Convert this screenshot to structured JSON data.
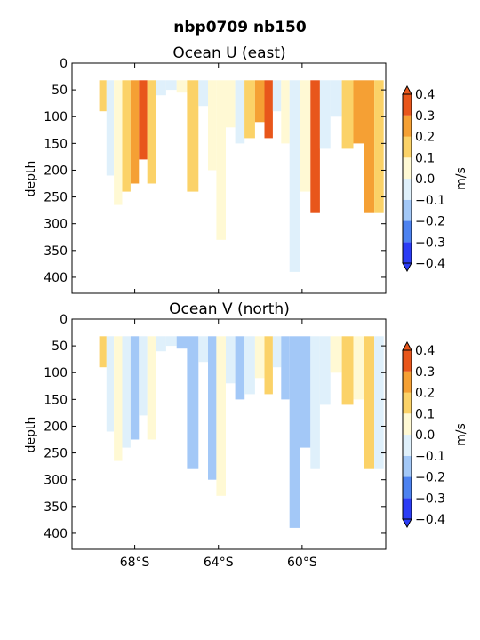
{
  "figure_title": "nbp0709 nb150",
  "chart_data": [
    {
      "type": "contour",
      "title": "Ocean U (east)",
      "ylabel": "depth",
      "xlabel": "",
      "x_tick_labels": [
        "68°S",
        "64°S",
        "60°S"
      ],
      "x_ticks": [
        -68,
        -64,
        -60
      ],
      "xlim": [
        -71,
        -56
      ],
      "ylim": [
        430,
        0
      ],
      "y_ticks": [
        0,
        50,
        100,
        150,
        200,
        250,
        300,
        350,
        400
      ],
      "colorbar": {
        "label": "m/s",
        "levels": [
          -0.4,
          -0.3,
          -0.2,
          -0.1,
          0.0,
          0.1,
          0.2,
          0.3,
          0.4
        ],
        "tick_labels": [
          "−0.4",
          "−0.3",
          "−0.2",
          "−0.1",
          "0.0",
          "0.1",
          "0.2",
          "0.3",
          "0.4"
        ],
        "colors": [
          "#2b3cf5",
          "#4d82f0",
          "#a3c8f7",
          "#dff0fb",
          "#fff9d4",
          "#fbd268",
          "#f5a034",
          "#e8561b"
        ]
      },
      "columns": [
        {
          "lat": -69.5,
          "bottom": 90,
          "v": 0.15
        },
        {
          "lat": -69.2,
          "bottom": 210,
          "v": -0.05
        },
        {
          "lat": -68.8,
          "bottom": 265,
          "v": 0.05
        },
        {
          "lat": -68.4,
          "bottom": 240,
          "v": 0.15
        },
        {
          "lat": -68.0,
          "bottom": 225,
          "v": 0.25
        },
        {
          "lat": -67.6,
          "bottom": 180,
          "v": 0.35
        },
        {
          "lat": -67.2,
          "bottom": 225,
          "v": 0.15
        },
        {
          "lat": -66.8,
          "bottom": 60,
          "v": -0.05
        },
        {
          "lat": -66.2,
          "bottom": 50,
          "v": -0.05
        },
        {
          "lat": -65.8,
          "bottom": 55,
          "v": 0.05
        },
        {
          "lat": -65.2,
          "bottom": 240,
          "v": 0.15
        },
        {
          "lat": -64.7,
          "bottom": 80,
          "v": -0.05
        },
        {
          "lat": -64.3,
          "bottom": 200,
          "v": 0.05
        },
        {
          "lat": -63.9,
          "bottom": 330,
          "v": 0.05
        },
        {
          "lat": -63.4,
          "bottom": 120,
          "v": 0.05
        },
        {
          "lat": -63.0,
          "bottom": 150,
          "v": -0.05
        },
        {
          "lat": -62.5,
          "bottom": 140,
          "v": 0.15
        },
        {
          "lat": -62.0,
          "bottom": 110,
          "v": 0.25
        },
        {
          "lat": -61.6,
          "bottom": 140,
          "v": 0.35
        },
        {
          "lat": -61.2,
          "bottom": 90,
          "v": -0.05
        },
        {
          "lat": -60.8,
          "bottom": 150,
          "v": 0.05
        },
        {
          "lat": -60.4,
          "bottom": 390,
          "v": -0.05
        },
        {
          "lat": -59.8,
          "bottom": 240,
          "v": 0.05
        },
        {
          "lat": -59.4,
          "bottom": 280,
          "v": 0.35
        },
        {
          "lat": -58.9,
          "bottom": 160,
          "v": -0.05
        },
        {
          "lat": -58.4,
          "bottom": 100,
          "v": -0.05
        },
        {
          "lat": -57.8,
          "bottom": 160,
          "v": 0.15
        },
        {
          "lat": -57.3,
          "bottom": 150,
          "v": 0.25
        },
        {
          "lat": -56.8,
          "bottom": 280,
          "v": 0.25
        },
        {
          "lat": -56.3,
          "bottom": 280,
          "v": 0.15
        }
      ]
    },
    {
      "type": "contour",
      "title": "Ocean V (north)",
      "ylabel": "depth",
      "xlabel": "",
      "x_tick_labels": [
        "68°S",
        "64°S",
        "60°S"
      ],
      "x_ticks": [
        -68,
        -64,
        -60
      ],
      "xlim": [
        -71,
        -56
      ],
      "ylim": [
        430,
        0
      ],
      "y_ticks": [
        0,
        50,
        100,
        150,
        200,
        250,
        300,
        350,
        400
      ],
      "colorbar": {
        "label": "m/s",
        "levels": [
          -0.4,
          -0.3,
          -0.2,
          -0.1,
          0.0,
          0.1,
          0.2,
          0.3,
          0.4
        ],
        "tick_labels": [
          "−0.4",
          "−0.3",
          "−0.2",
          "−0.1",
          "0.0",
          "0.1",
          "0.2",
          "0.3",
          "0.4"
        ],
        "colors": [
          "#2b3cf5",
          "#4d82f0",
          "#a3c8f7",
          "#dff0fb",
          "#fff9d4",
          "#fbd268",
          "#f5a034",
          "#e8561b"
        ]
      },
      "columns": [
        {
          "lat": -69.5,
          "bottom": 90,
          "v": 0.15
        },
        {
          "lat": -69.2,
          "bottom": 210,
          "v": -0.05
        },
        {
          "lat": -68.8,
          "bottom": 265,
          "v": 0.05
        },
        {
          "lat": -68.4,
          "bottom": 240,
          "v": -0.05
        },
        {
          "lat": -68.0,
          "bottom": 225,
          "v": -0.15
        },
        {
          "lat": -67.6,
          "bottom": 180,
          "v": -0.05
        },
        {
          "lat": -67.2,
          "bottom": 225,
          "v": 0.05
        },
        {
          "lat": -66.8,
          "bottom": 60,
          "v": -0.05
        },
        {
          "lat": -66.2,
          "bottom": 50,
          "v": -0.05
        },
        {
          "lat": -65.8,
          "bottom": 55,
          "v": -0.15
        },
        {
          "lat": -65.2,
          "bottom": 280,
          "v": -0.15
        },
        {
          "lat": -64.7,
          "bottom": 80,
          "v": -0.05
        },
        {
          "lat": -64.3,
          "bottom": 300,
          "v": -0.15
        },
        {
          "lat": -63.9,
          "bottom": 330,
          "v": 0.05
        },
        {
          "lat": -63.4,
          "bottom": 120,
          "v": -0.05
        },
        {
          "lat": -63.0,
          "bottom": 150,
          "v": -0.15
        },
        {
          "lat": -62.5,
          "bottom": 140,
          "v": -0.05
        },
        {
          "lat": -62.0,
          "bottom": 110,
          "v": 0.05
        },
        {
          "lat": -61.6,
          "bottom": 140,
          "v": 0.15
        },
        {
          "lat": -61.2,
          "bottom": 90,
          "v": -0.05
        },
        {
          "lat": -60.8,
          "bottom": 150,
          "v": -0.15
        },
        {
          "lat": -60.4,
          "bottom": 390,
          "v": -0.15
        },
        {
          "lat": -59.8,
          "bottom": 240,
          "v": -0.15
        },
        {
          "lat": -59.4,
          "bottom": 280,
          "v": -0.05
        },
        {
          "lat": -58.9,
          "bottom": 160,
          "v": -0.05
        },
        {
          "lat": -58.4,
          "bottom": 100,
          "v": 0.05
        },
        {
          "lat": -57.8,
          "bottom": 160,
          "v": 0.15
        },
        {
          "lat": -57.3,
          "bottom": 150,
          "v": 0.05
        },
        {
          "lat": -56.8,
          "bottom": 280,
          "v": 0.15
        },
        {
          "lat": -56.3,
          "bottom": 280,
          "v": -0.05
        }
      ]
    }
  ]
}
